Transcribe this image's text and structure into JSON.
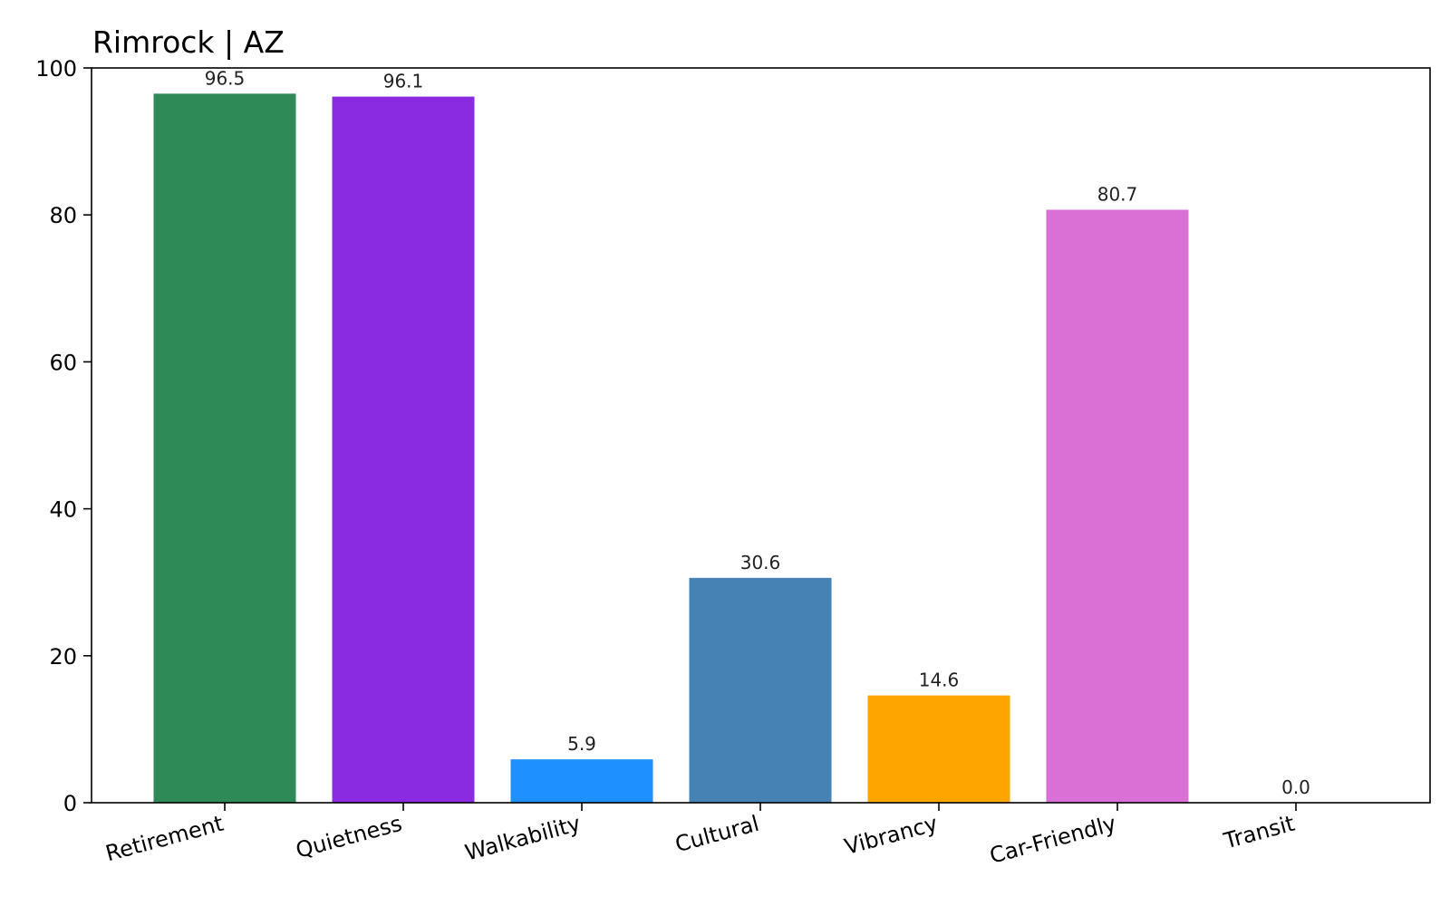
{
  "chart_data": {
    "type": "bar",
    "title": "Rimrock | AZ",
    "xlabel": "",
    "ylabel": "",
    "categories": [
      "Retirement",
      "Quietness",
      "Walkability",
      "Cultural",
      "Vibrancy",
      "Car-Friendly",
      "Transit"
    ],
    "values": [
      96.5,
      96.1,
      5.9,
      30.6,
      14.6,
      80.7,
      0.0
    ],
    "value_labels": [
      "96.5",
      "96.1",
      "5.9",
      "30.6",
      "14.6",
      "80.7",
      "0.0"
    ],
    "colors": [
      "#2e8b57",
      "#8a2be2",
      "#1e90ff",
      "#4682b4",
      "#ffa500",
      "#da70d6",
      "#6a5acd"
    ],
    "ylim": [
      0,
      100
    ],
    "yticks": [
      0,
      20,
      40,
      60,
      80,
      100
    ],
    "ytick_labels": [
      "0",
      "20",
      "40",
      "60",
      "80",
      "100"
    ],
    "grid": false,
    "legend": "none"
  }
}
